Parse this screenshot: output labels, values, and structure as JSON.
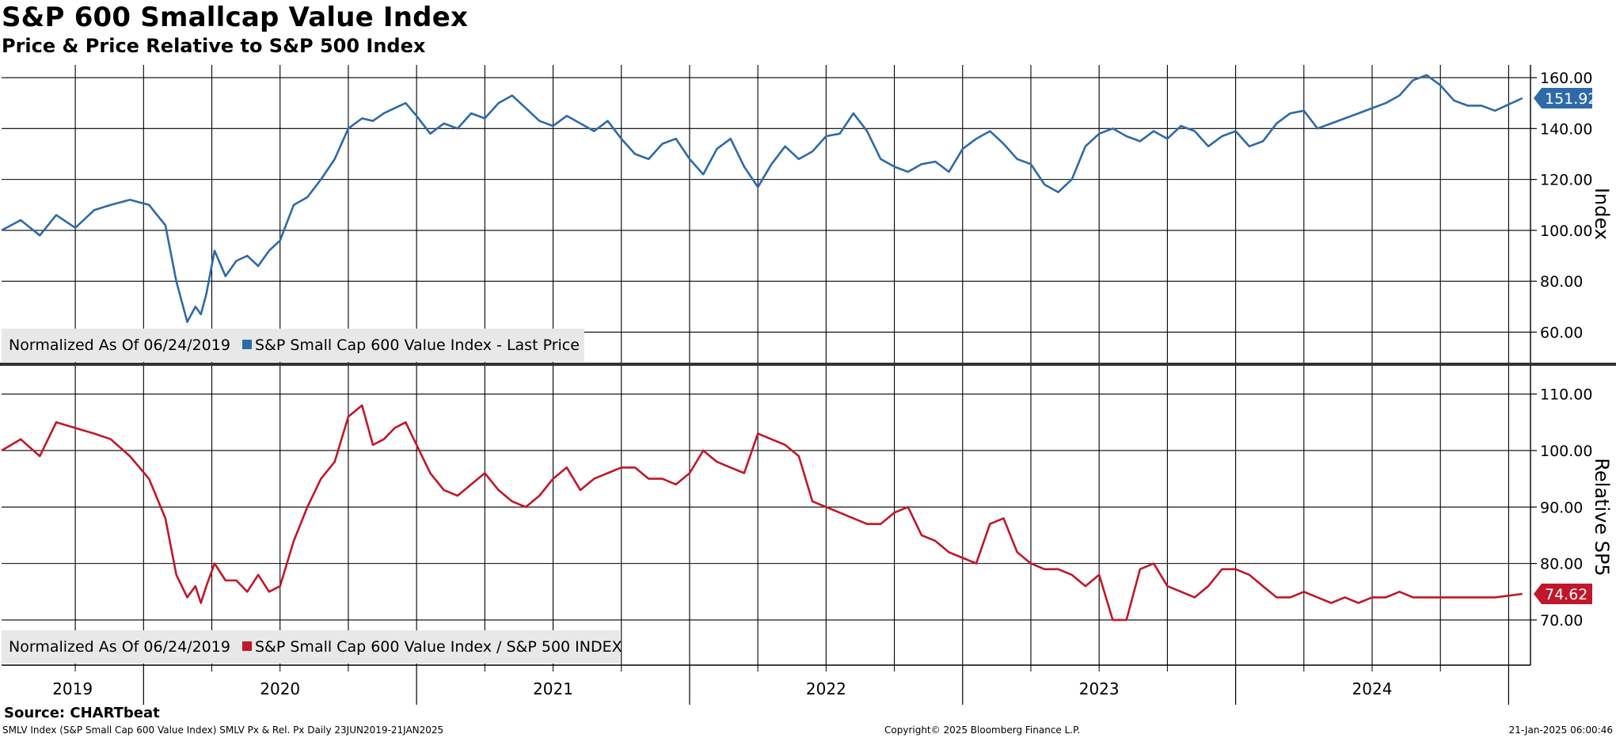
{
  "header": {
    "title": "S&P 600 Smallcap Value Index",
    "subtitle": "Price & Price Relative to S&P 500 Index"
  },
  "footer": {
    "source": "Source: CHARTbeat",
    "ticker_info": "SMLV Index (S&P Small Cap 600 Value Index) SMLV Px & Rel. Px  Daily 23JUN2019-21JAN2025",
    "copyright": "Copyright© 2025 Bloomberg Finance L.P.",
    "timestamp": "21-Jan-2025 06:00:46"
  },
  "colors": {
    "price": "#2e6aa8",
    "relative": "#c0172b",
    "grid": "#000000",
    "legend_bg": "#e8e8e8"
  },
  "chart_data": [
    {
      "type": "line",
      "name": "price-panel",
      "ylabel": "Index",
      "ylim": [
        48,
        165
      ],
      "yticks": [
        60,
        80,
        100,
        120,
        140,
        160
      ],
      "ytick_labels": [
        "60.00",
        "80.00",
        "100.00",
        "120.00",
        "140.00",
        "160.00"
      ],
      "legend": {
        "prefix": "Normalized As Of 06/24/2019",
        "label": "S&P Small Cap 600 Value Index - Last Price"
      },
      "last_value_label": "151.92",
      "series": [
        {
          "name": "S&P Small Cap 600 Value Index - Last Price",
          "x": [
            2019.48,
            2019.55,
            2019.62,
            2019.68,
            2019.75,
            2019.82,
            2019.88,
            2019.95,
            2020.02,
            2020.08,
            2020.12,
            2020.16,
            2020.19,
            2020.21,
            2020.23,
            2020.26,
            2020.3,
            2020.34,
            2020.38,
            2020.42,
            2020.46,
            2020.5,
            2020.55,
            2020.6,
            2020.65,
            2020.7,
            2020.75,
            2020.8,
            2020.84,
            2020.88,
            2020.92,
            2020.96,
            2021.0,
            2021.05,
            2021.1,
            2021.15,
            2021.2,
            2021.25,
            2021.3,
            2021.35,
            2021.4,
            2021.45,
            2021.5,
            2021.55,
            2021.6,
            2021.65,
            2021.7,
            2021.75,
            2021.8,
            2021.85,
            2021.9,
            2021.95,
            2022.0,
            2022.05,
            2022.1,
            2022.15,
            2022.2,
            2022.25,
            2022.3,
            2022.35,
            2022.4,
            2022.45,
            2022.5,
            2022.55,
            2022.6,
            2022.65,
            2022.7,
            2022.75,
            2022.8,
            2022.85,
            2022.9,
            2022.95,
            2023.0,
            2023.05,
            2023.1,
            2023.15,
            2023.2,
            2023.25,
            2023.3,
            2023.35,
            2023.4,
            2023.45,
            2023.5,
            2023.55,
            2023.6,
            2023.65,
            2023.7,
            2023.75,
            2023.8,
            2023.85,
            2023.9,
            2023.95,
            2024.0,
            2024.05,
            2024.1,
            2024.15,
            2024.2,
            2024.25,
            2024.3,
            2024.35,
            2024.4,
            2024.45,
            2024.5,
            2024.55,
            2024.6,
            2024.65,
            2024.7,
            2024.75,
            2024.8,
            2024.85,
            2024.9,
            2024.95,
            2025.05
          ],
          "y": [
            100,
            104,
            98,
            106,
            101,
            108,
            110,
            112,
            110,
            102,
            80,
            64,
            70,
            67,
            75,
            92,
            82,
            88,
            90,
            86,
            92,
            96,
            110,
            113,
            120,
            128,
            140,
            144,
            143,
            146,
            148,
            150,
            145,
            138,
            142,
            140,
            146,
            144,
            150,
            153,
            148,
            143,
            141,
            145,
            142,
            139,
            143,
            136,
            130,
            128,
            134,
            136,
            128,
            122,
            132,
            136,
            125,
            117,
            126,
            133,
            128,
            131,
            137,
            138,
            146,
            139,
            128,
            125,
            123,
            126,
            127,
            123,
            132,
            136,
            139,
            134,
            128,
            126,
            118,
            115,
            120,
            133,
            138,
            140,
            137,
            135,
            139,
            136,
            141,
            139,
            133,
            137,
            139,
            133,
            135,
            142,
            146,
            147,
            140,
            142,
            144,
            146,
            148,
            150,
            153,
            159,
            161,
            157,
            151,
            149,
            149,
            147,
            151.92
          ]
        }
      ]
    },
    {
      "type": "line",
      "name": "relative-panel",
      "ylabel": "Relative SP5",
      "ylim": [
        62,
        115
      ],
      "yticks": [
        70,
        80,
        90,
        100,
        110
      ],
      "ytick_labels": [
        "70.00",
        "80.00",
        "90.00",
        "100.00",
        "110.00"
      ],
      "legend": {
        "prefix": "Normalized As Of 06/24/2019",
        "label": "S&P Small Cap 600 Value Index / S&P 500 INDEX"
      },
      "last_value_label": "74.62",
      "series": [
        {
          "name": "S&P Small Cap 600 Value Index / S&P 500 INDEX",
          "x": [
            2019.48,
            2019.55,
            2019.62,
            2019.68,
            2019.75,
            2019.82,
            2019.88,
            2019.95,
            2020.02,
            2020.08,
            2020.12,
            2020.16,
            2020.19,
            2020.21,
            2020.23,
            2020.26,
            2020.3,
            2020.34,
            2020.38,
            2020.42,
            2020.46,
            2020.5,
            2020.55,
            2020.6,
            2020.65,
            2020.7,
            2020.75,
            2020.8,
            2020.84,
            2020.88,
            2020.92,
            2020.96,
            2021.0,
            2021.05,
            2021.1,
            2021.15,
            2021.2,
            2021.25,
            2021.3,
            2021.35,
            2021.4,
            2021.45,
            2021.5,
            2021.55,
            2021.6,
            2021.65,
            2021.7,
            2021.75,
            2021.8,
            2021.85,
            2021.9,
            2021.95,
            2022.0,
            2022.05,
            2022.1,
            2022.15,
            2022.2,
            2022.25,
            2022.3,
            2022.35,
            2022.4,
            2022.45,
            2022.5,
            2022.55,
            2022.6,
            2022.65,
            2022.7,
            2022.75,
            2022.8,
            2022.85,
            2022.9,
            2022.95,
            2023.0,
            2023.05,
            2023.1,
            2023.15,
            2023.2,
            2023.25,
            2023.3,
            2023.35,
            2023.4,
            2023.45,
            2023.5,
            2023.55,
            2023.6,
            2023.65,
            2023.7,
            2023.75,
            2023.8,
            2023.85,
            2023.9,
            2023.95,
            2024.0,
            2024.05,
            2024.1,
            2024.15,
            2024.2,
            2024.25,
            2024.3,
            2024.35,
            2024.4,
            2024.45,
            2024.5,
            2024.55,
            2024.6,
            2024.65,
            2024.7,
            2024.75,
            2024.8,
            2024.85,
            2024.9,
            2024.95,
            2025.05
          ],
          "y": [
            100,
            102,
            99,
            105,
            104,
            103,
            102,
            99,
            95,
            88,
            78,
            74,
            76,
            73,
            76,
            80,
            77,
            77,
            75,
            78,
            75,
            76,
            84,
            90,
            95,
            98,
            106,
            108,
            101,
            102,
            104,
            105,
            101,
            96,
            93,
            92,
            94,
            96,
            93,
            91,
            90,
            92,
            95,
            97,
            93,
            95,
            96,
            97,
            97,
            95,
            95,
            94,
            96,
            100,
            98,
            97,
            96,
            103,
            102,
            101,
            99,
            91,
            90,
            89,
            88,
            87,
            87,
            89,
            90,
            85,
            84,
            82,
            81,
            80,
            87,
            88,
            82,
            80,
            79,
            79,
            78,
            76,
            78,
            70,
            70,
            79,
            80,
            76,
            75,
            74,
            76,
            79,
            79,
            78,
            76,
            74,
            74,
            75,
            74,
            73,
            74,
            73,
            74,
            74,
            75,
            74,
            74,
            74,
            74,
            74,
            74,
            74,
            74.62
          ]
        }
      ]
    }
  ],
  "x_axis": {
    "range": [
      2019.48,
      2025.08
    ],
    "year_labels": [
      "2019",
      "2020",
      "2021",
      "2022",
      "2023",
      "2024"
    ]
  }
}
